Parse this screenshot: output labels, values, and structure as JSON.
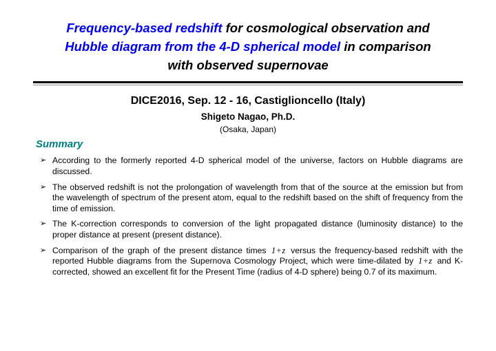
{
  "title": {
    "line1_blue": "Frequency-based redshift",
    "line1_black": " for cosmological observation and",
    "line2_blue": "Hubble diagram from the 4-D spherical model",
    "line2_black": " in comparison",
    "line3_black": "with observed supernovae"
  },
  "conference": "DICE2016, Sep. 12 - 16, Castiglioncello (Italy)",
  "author": "Shigeto Nagao, Ph.D.",
  "affiliation": "(Osaka, Japan)",
  "summary_heading": "Summary",
  "bullets": {
    "b1": "According to the formerly reported 4-D spherical model of the universe, factors on Hubble diagrams are discussed.",
    "b2": "The observed redshift is not the prolongation of wavelength from that of the source at the emission but from the wavelength of spectrum of the present atom, equal to the redshift based on the shift of frequency from the time of emission.",
    "b3": "The K-correction corresponds to conversion of the light propagated distance (luminosity distance) to the proper distance at present (present distance).",
    "b4_a": "Comparison of the graph of the present distance times ",
    "b4_b": " versus the frequency-based redshift with the reported Hubble diagrams from the Supernova Cosmology Project, which were time-dilated by ",
    "b4_c": " and K-corrected, showed an excellent fit for the Present Time (radius of 4-D sphere) being 0.7 of its maximum."
  },
  "math": {
    "one_plus_z": "1+z"
  },
  "colors": {
    "blue": "#0000ee",
    "teal": "#008080",
    "black": "#000000",
    "rule_thin": "#888888"
  }
}
